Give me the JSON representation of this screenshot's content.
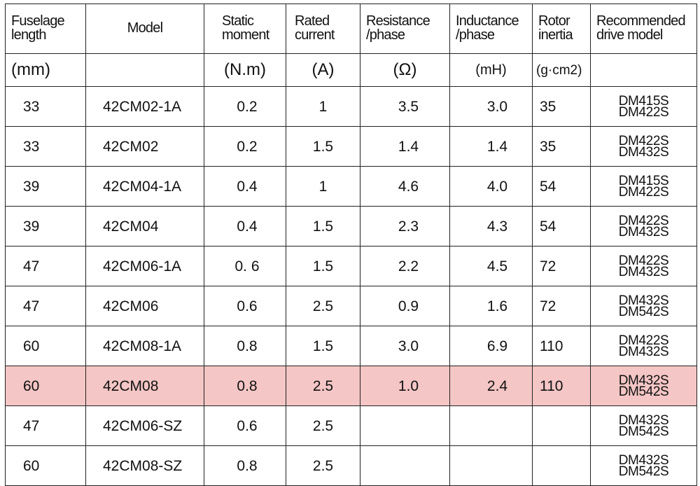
{
  "headers": [
    {
      "key": "length",
      "label": "Fuselage length"
    },
    {
      "key": "model",
      "label": "Model"
    },
    {
      "key": "moment",
      "label": "Static moment"
    },
    {
      "key": "current",
      "label": "Rated current"
    },
    {
      "key": "resistance",
      "label": "Resistance /phase"
    },
    {
      "key": "inductance",
      "label": "Inductance /phase"
    },
    {
      "key": "inertia",
      "label": "Rotor inertia"
    },
    {
      "key": "drive",
      "label": "Recommended drive model"
    }
  ],
  "units": [
    "(mm)",
    "",
    "(N.m)",
    "(A)",
    "(Ω)",
    "(mH)",
    "(g·cm2)",
    ""
  ],
  "rows": [
    {
      "length": "33",
      "model": "42CM02-1A",
      "moment": "0.2",
      "current": "1",
      "resistance": "3.5",
      "inductance": "3.0",
      "inertia": "35",
      "drive": [
        "DM415S",
        "DM422S"
      ],
      "highlight": false
    },
    {
      "length": "33",
      "model": "42CM02",
      "moment": "0.2",
      "current": "1.5",
      "resistance": "1.4",
      "inductance": "1.4",
      "inertia": "35",
      "drive": [
        "DM422S",
        "DM432S"
      ],
      "highlight": false
    },
    {
      "length": "39",
      "model": "42CM04-1A",
      "moment": "0.4",
      "current": "1",
      "resistance": "4.6",
      "inductance": "4.0",
      "inertia": "54",
      "drive": [
        "DM415S",
        "DM422S"
      ],
      "highlight": false
    },
    {
      "length": "39",
      "model": "42CM04",
      "moment": "0.4",
      "current": "1.5",
      "resistance": "2.3",
      "inductance": "4.3",
      "inertia": "54",
      "drive": [
        "DM422S",
        "DM432S"
      ],
      "highlight": false
    },
    {
      "length": "47",
      "model": "42CM06-1A",
      "moment": "0. 6",
      "current": "1.5",
      "resistance": "2.2",
      "inductance": "4.5",
      "inertia": "72",
      "drive": [
        "DM422S",
        "DM432S"
      ],
      "highlight": false
    },
    {
      "length": "47",
      "model": "42CM06",
      "moment": "0.6",
      "current": "2.5",
      "resistance": "0.9",
      "inductance": "1.6",
      "inertia": "72",
      "drive": [
        "DM432S",
        "DM542S"
      ],
      "highlight": false
    },
    {
      "length": "60",
      "model": "42CM08-1A",
      "moment": "0.8",
      "current": "1.5",
      "resistance": "3.0",
      "inductance": "6.9",
      "inertia": "110",
      "drive": [
        "DM422S",
        "DM432S"
      ],
      "highlight": false
    },
    {
      "length": "60",
      "model": "42CM08",
      "moment": "0.8",
      "current": "2.5",
      "resistance": "1.0",
      "inductance": "2.4",
      "inertia": "110",
      "drive": [
        "DM432S",
        "DM542S"
      ],
      "highlight": true
    },
    {
      "length": "47",
      "model": "42CM06-SZ",
      "moment": "0.6",
      "current": "2.5",
      "resistance": "",
      "inductance": "",
      "inertia": "",
      "drive": [
        "DM432S",
        "DM542S"
      ],
      "highlight": false
    },
    {
      "length": "60",
      "model": "42CM08-SZ",
      "moment": "0.8",
      "current": "2.5",
      "resistance": "",
      "inductance": "",
      "inertia": "",
      "drive": [
        "DM432S",
        "DM542S"
      ],
      "highlight": false
    }
  ],
  "colors": {
    "highlight_row": "#f4c6c5",
    "border": "#222222"
  }
}
